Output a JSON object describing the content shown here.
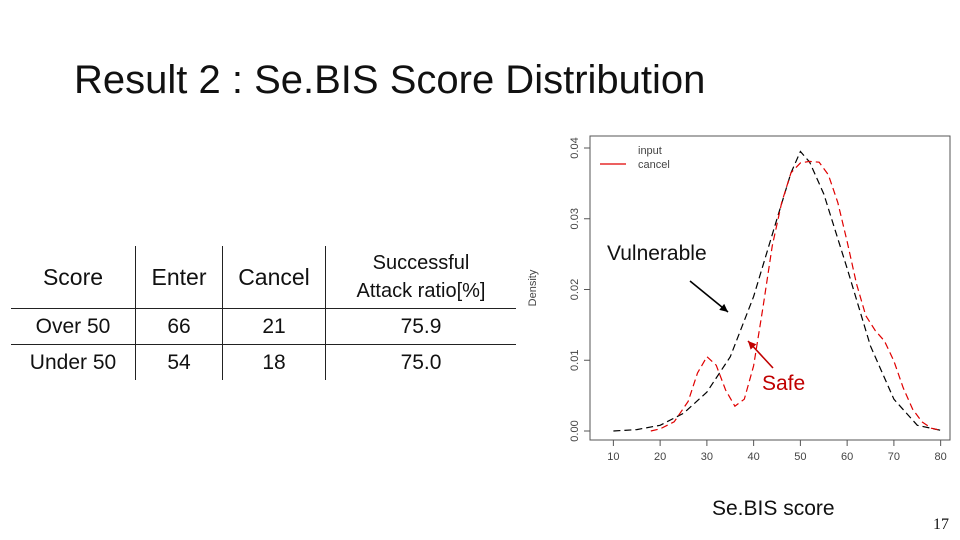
{
  "slide": {
    "title": "Result 2 : Se.BIS Score Distribution",
    "page_number": "17"
  },
  "table": {
    "headers": {
      "score": "Score",
      "enter": "Enter",
      "cancel": "Cancel",
      "ratio_line1": "Successful",
      "ratio_line2": "Attack ratio[%]"
    },
    "rows": [
      {
        "score": "Over 50",
        "enter": "66",
        "cancel": "21",
        "ratio": "75.9"
      },
      {
        "score": "Under 50",
        "enter": "54",
        "cancel": "18",
        "ratio": "75.0"
      }
    ]
  },
  "annotations": {
    "vulnerable": "Vulnerable",
    "safe": "Safe"
  },
  "colors": {
    "input": "#000000",
    "cancel": "#e00000",
    "safe_text": "#c00000"
  },
  "chart_data": {
    "type": "line",
    "xlabel": "Se.BIS score",
    "ylabel": "Density",
    "xlim": [
      10,
      80
    ],
    "ylim": [
      0,
      0.04
    ],
    "x_ticks": [
      "10",
      "20",
      "30",
      "40",
      "50",
      "60",
      "70",
      "80"
    ],
    "y_ticks": [
      "0.00",
      "0.01",
      "0.02",
      "0.03",
      "0.04"
    ],
    "legend": {
      "placement": "top-left",
      "entries": [
        "input",
        "cancel"
      ]
    },
    "series": [
      {
        "name": "input",
        "style": "dashed",
        "x": [
          10,
          15,
          20,
          25,
          30,
          35,
          40,
          45,
          48,
          50,
          52,
          55,
          60,
          65,
          70,
          75,
          80
        ],
        "y": [
          0.0,
          0.0002,
          0.0008,
          0.0025,
          0.0055,
          0.0105,
          0.019,
          0.03,
          0.0365,
          0.0395,
          0.038,
          0.0335,
          0.023,
          0.012,
          0.0045,
          0.0008,
          0.0001
        ]
      },
      {
        "name": "cancel",
        "style": "dashed",
        "x": [
          18,
          20,
          23,
          26,
          28,
          30,
          32,
          34,
          36,
          38,
          40,
          42,
          44,
          46,
          48,
          50,
          52,
          54,
          56,
          58,
          60,
          62,
          64,
          66,
          68,
          70,
          72,
          74,
          76,
          78,
          80
        ],
        "y": [
          0.0,
          0.0003,
          0.0013,
          0.0042,
          0.0082,
          0.0105,
          0.0093,
          0.0058,
          0.0035,
          0.0045,
          0.0092,
          0.0175,
          0.0262,
          0.0323,
          0.0365,
          0.0379,
          0.0381,
          0.038,
          0.0362,
          0.0323,
          0.0268,
          0.0208,
          0.0163,
          0.0142,
          0.0127,
          0.0099,
          0.0061,
          0.0031,
          0.0013,
          0.0004,
          0.0001
        ]
      }
    ]
  }
}
